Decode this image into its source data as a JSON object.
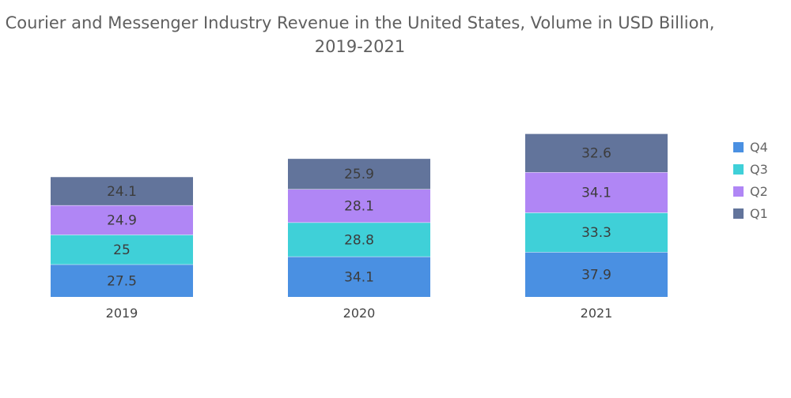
{
  "chart_data": {
    "type": "bar",
    "stacked": true,
    "title_line1": "Courier and Messenger Industry Revenue in the United States, Volume in USD Billion,",
    "title_line2": "2019-2021",
    "categories": [
      "2019",
      "2020",
      "2021"
    ],
    "series": [
      {
        "name": "Q4",
        "color": "#4a90e2",
        "values": [
          27.5,
          34.1,
          37.9
        ]
      },
      {
        "name": "Q3",
        "color": "#3fd0d8",
        "values": [
          25,
          28.8,
          33.3
        ]
      },
      {
        "name": "Q2",
        "color": "#b086f5",
        "values": [
          24.9,
          28.1,
          34.1
        ]
      },
      {
        "name": "Q1",
        "color": "#62749b",
        "values": [
          24.1,
          25.9,
          32.6
        ]
      }
    ],
    "legend": [
      "Q4",
      "Q3",
      "Q2",
      "Q1"
    ],
    "legend_position": "right",
    "xlabel": "",
    "ylabel": "",
    "grid": false
  }
}
